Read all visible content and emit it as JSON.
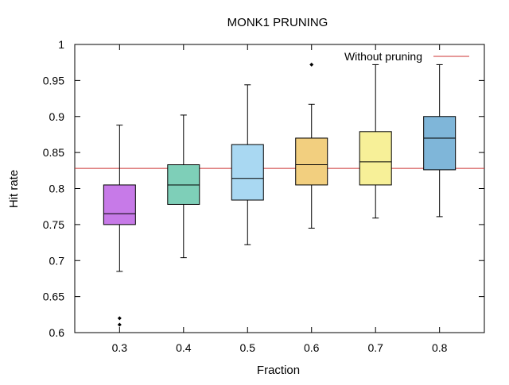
{
  "chart_data": {
    "type": "box",
    "title": "MONK1 PRUNING",
    "xlabel": "Fraction",
    "ylabel": "Hit rate",
    "ylim": [
      0.6,
      1.0
    ],
    "xlim": [
      0.23,
      0.87
    ],
    "yticks": [
      "0.6",
      "0.65",
      "0.7",
      "0.75",
      "0.8",
      "0.85",
      "0.9",
      "0.95",
      "1"
    ],
    "grid": false,
    "legend": {
      "position": "top-right",
      "entries": [
        "Without pruning"
      ]
    },
    "reference_line": {
      "name": "Without pruning",
      "y": 0.828,
      "color": "#cc3333"
    },
    "categories": [
      "0.3",
      "0.4",
      "0.5",
      "0.6",
      "0.7",
      "0.8"
    ],
    "boxes": [
      {
        "x": 0.3,
        "label": "0.3",
        "min": 0.685,
        "q1": 0.75,
        "median": 0.765,
        "q3": 0.805,
        "max": 0.888,
        "outliers": [
          0.62,
          0.611
        ],
        "color": "#c77ae8"
      },
      {
        "x": 0.4,
        "label": "0.4",
        "min": 0.704,
        "q1": 0.778,
        "median": 0.805,
        "q3": 0.833,
        "max": 0.902,
        "outliers": [],
        "color": "#7ecfb8"
      },
      {
        "x": 0.5,
        "label": "0.5",
        "min": 0.722,
        "q1": 0.784,
        "median": 0.814,
        "q3": 0.861,
        "max": 0.944,
        "outliers": [],
        "color": "#a9d8f2"
      },
      {
        "x": 0.6,
        "label": "0.6",
        "min": 0.745,
        "q1": 0.805,
        "median": 0.833,
        "q3": 0.87,
        "max": 0.917,
        "outliers": [
          0.972
        ],
        "color": "#f2cf7f"
      },
      {
        "x": 0.7,
        "label": "0.7",
        "min": 0.759,
        "q1": 0.805,
        "median": 0.837,
        "q3": 0.879,
        "max": 0.972,
        "outliers": [],
        "color": "#f7f098"
      },
      {
        "x": 0.8,
        "label": "0.8",
        "min": 0.761,
        "q1": 0.826,
        "median": 0.87,
        "q3": 0.9,
        "max": 0.972,
        "outliers": [],
        "color": "#7fb6d9"
      }
    ]
  }
}
